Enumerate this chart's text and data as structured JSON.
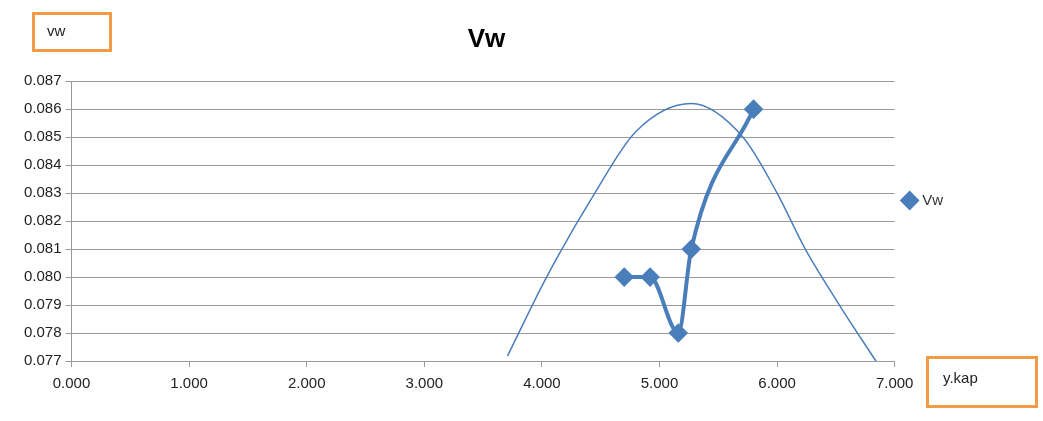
{
  "chart_data": {
    "type": "line",
    "title": "Vw",
    "xlabel": "y.kap",
    "ylabel": "vw",
    "xlim": [
      0,
      7
    ],
    "xticks": [
      {
        "value": 0,
        "label": "0.000"
      },
      {
        "value": 1,
        "label": "1.000"
      },
      {
        "value": 2,
        "label": "2.000"
      },
      {
        "value": 3,
        "label": "3.000"
      },
      {
        "value": 4,
        "label": "4.000"
      },
      {
        "value": 5,
        "label": "5.000"
      },
      {
        "value": 6,
        "label": "6.000"
      },
      {
        "value": 7,
        "label": "7.000"
      }
    ],
    "ylim": [
      0.077,
      0.087
    ],
    "yticks": [
      0.077,
      0.078,
      0.079,
      {
        "value": 0.08,
        "label": "0.080"
      },
      0.081,
      0.082,
      0.083,
      0.084,
      0.085,
      0.086,
      0.087
    ],
    "grid": "y",
    "legend": "right",
    "marker": "diamond",
    "line_style": "solid",
    "series": [
      {
        "name": "Vw",
        "color": "#4a7ebb",
        "x": [
          4.7,
          4.92,
          5.16,
          5.27,
          5.8
        ],
        "values": [
          0.08,
          0.08,
          0.078,
          0.081,
          0.086
        ]
      },
      {
        "type": "line",
        "marker": "none",
        "color": "#4a7ebb",
        "x": [
          3.71,
          4.04,
          4.45,
          4.8,
          5.27,
          5.71,
          6.0,
          6.24,
          6.53,
          6.84
        ],
        "values": [
          0.0772,
          0.08,
          0.083,
          0.0852,
          0.0862,
          0.085,
          0.083,
          0.081,
          0.079,
          0.077
        ]
      }
    ]
  }
}
